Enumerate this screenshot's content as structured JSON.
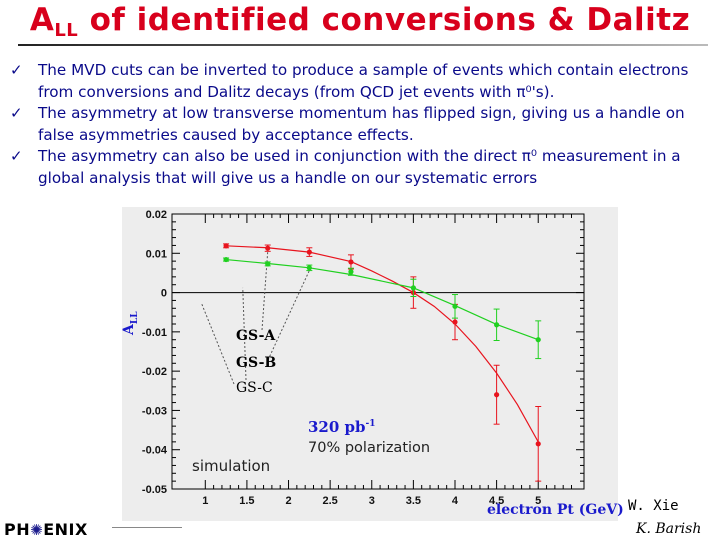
{
  "slide": {
    "title_main": "A",
    "title_sub": "LL",
    "title_rest": " of identified conversions & Dalitz",
    "bullets": [
      "The MVD cuts can be inverted to produce a sample of events which contain electrons from conversions and Dalitz decays (from QCD jet events with π⁰'s).",
      "The asymmetry at low transverse momentum has flipped sign, giving us a handle on false asymmetries caused by acceptance effects.",
      "The asymmetry can also be used in conjunction with the direct π⁰ measurement in a global analysis that will give us a handle on our systematic errors"
    ],
    "bullet_check": "✓",
    "logo_left": "PH",
    "logo_burst": "✺",
    "logo_right": "ENIX",
    "author_1": "W. Xie",
    "author_2": "K. Barish"
  },
  "chart_data": {
    "type": "scatter",
    "xlabel": "electron Pt (GeV)",
    "ylabel_main": "A",
    "ylabel_sub": "LL",
    "xlim": [
      0.6,
      5.55
    ],
    "ylim": [
      -0.05,
      0.02
    ],
    "x_ticks": [
      1,
      1.5,
      2,
      2.5,
      3,
      3.5,
      4,
      4.5,
      5
    ],
    "y_ticks": [
      0.02,
      0.01,
      0,
      -0.01,
      -0.02,
      -0.03,
      -0.04,
      -0.05
    ],
    "x_tick_labels": [
      "1",
      "1.5",
      "2",
      "2.5",
      "3",
      "3.5",
      "4",
      "4.5",
      "5"
    ],
    "y_tick_labels": [
      "0.02",
      "0.01",
      "0",
      "-0.01",
      "-0.02",
      "-0.03",
      "-0.04",
      "-0.05"
    ],
    "grid": false,
    "annotations": {
      "luminosity": "320 pb",
      "luminosity_sup": "-1",
      "polarization": "70% polarization",
      "simulation": "simulation"
    },
    "series": [
      {
        "name": "GS-A",
        "color": "#e8141e",
        "x": [
          1.25,
          1.75,
          2.25,
          2.75,
          3.5,
          4.0,
          4.5,
          5.0
        ],
        "y": [
          0.0119,
          0.0113,
          0.0103,
          0.0078,
          0.0,
          -0.0075,
          -0.026,
          -0.0385
        ],
        "yerr": [
          0.0005,
          0.0008,
          0.0011,
          0.0018,
          0.004,
          0.0045,
          0.0075,
          0.0095
        ],
        "fit": [
          [
            1.25,
            0.0119
          ],
          [
            1.75,
            0.0114
          ],
          [
            2.25,
            0.0103
          ],
          [
            2.75,
            0.0079
          ],
          [
            3.0,
            0.0055
          ],
          [
            3.25,
            0.0029
          ],
          [
            3.5,
            0.0
          ],
          [
            3.75,
            -0.0035
          ],
          [
            4.0,
            -0.008
          ],
          [
            4.25,
            -0.0137
          ],
          [
            4.5,
            -0.0205
          ],
          [
            4.75,
            -0.0285
          ],
          [
            5.0,
            -0.038
          ]
        ]
      },
      {
        "name": "GS-B",
        "color": "#20d020",
        "x": [
          1.25,
          1.75,
          2.25,
          2.75,
          3.5,
          4.0,
          4.5,
          5.0
        ],
        "y": [
          0.0084,
          0.0073,
          0.0063,
          0.0053,
          0.0012,
          -0.0035,
          -0.0082,
          -0.012
        ],
        "yerr": [
          0.0004,
          0.0005,
          0.0007,
          0.0009,
          0.0022,
          0.003,
          0.004,
          0.0048
        ],
        "fit": [
          [
            1.25,
            0.0084
          ],
          [
            1.75,
            0.0074
          ],
          [
            2.25,
            0.0063
          ],
          [
            2.75,
            0.0046
          ],
          [
            3.5,
            0.0012
          ],
          [
            4.0,
            -0.0033
          ],
          [
            4.5,
            -0.0081
          ],
          [
            5.0,
            -0.012
          ]
        ]
      }
    ],
    "legend_labels": [
      {
        "text": "GS-A",
        "color": "#e8141e"
      },
      {
        "text": "GS-B",
        "color": "#20d020"
      },
      {
        "text": "GS-C",
        "color": "#111111"
      }
    ]
  }
}
